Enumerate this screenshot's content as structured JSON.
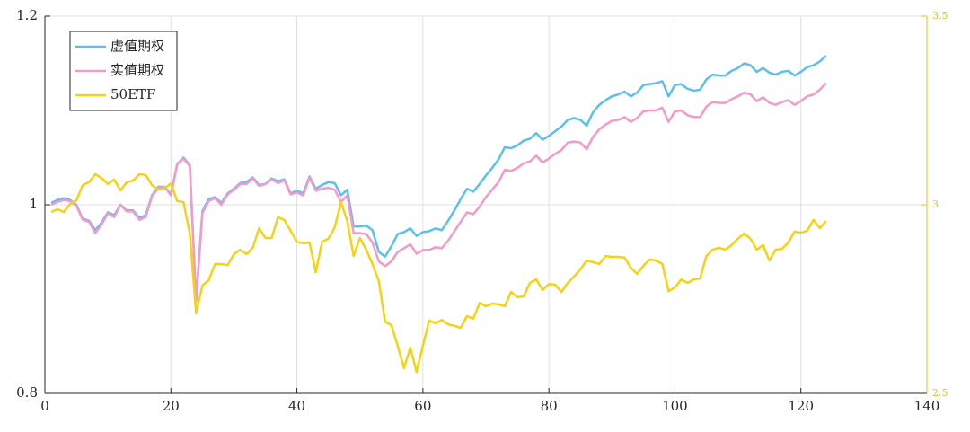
{
  "chart_data": {
    "type": "line",
    "x": [
      1,
      2,
      3,
      4,
      5,
      6,
      7,
      8,
      9,
      10,
      11,
      12,
      13,
      14,
      15,
      16,
      17,
      18,
      19,
      20,
      21,
      22,
      23,
      24,
      25,
      26,
      27,
      28,
      29,
      30,
      31,
      32,
      33,
      34,
      35,
      36,
      37,
      38,
      39,
      40,
      41,
      42,
      43,
      44,
      45,
      46,
      47,
      48,
      49,
      50,
      51,
      52,
      53,
      54,
      55,
      56,
      57,
      58,
      59,
      60,
      61,
      62,
      63,
      64,
      65,
      66,
      67,
      68,
      69,
      70,
      71,
      72,
      73,
      74,
      75,
      76,
      77,
      78,
      79,
      80,
      81,
      82,
      83,
      84,
      85,
      86,
      87,
      88,
      89,
      90,
      91,
      92,
      93,
      94,
      95,
      96,
      97,
      98,
      99,
      100,
      101,
      102,
      103,
      104,
      105,
      106,
      107,
      108,
      109,
      110,
      111,
      112,
      113,
      114,
      115,
      116,
      117,
      118,
      119,
      120,
      121,
      122,
      123,
      124
    ],
    "series": [
      {
        "name": "虚值期权",
        "color": "#5bc0eb",
        "values": [
          1.002,
          1.005,
          1.007,
          1.005,
          1.0,
          0.985,
          0.983,
          0.973,
          0.981,
          0.992,
          0.989,
          1.0,
          0.994,
          0.994,
          0.986,
          0.989,
          1.01,
          1.019,
          1.019,
          1.011,
          1.043,
          1.05,
          1.042,
          0.898,
          0.993,
          1.006,
          1.008,
          1.002,
          1.012,
          1.017,
          1.023,
          1.024,
          1.029,
          1.021,
          1.022,
          1.028,
          1.025,
          1.027,
          1.012,
          1.015,
          1.012,
          1.03,
          1.017,
          1.021,
          1.024,
          1.023,
          1.01,
          1.016,
          0.977,
          0.977,
          0.978,
          0.973,
          0.95,
          0.945,
          0.956,
          0.969,
          0.971,
          0.975,
          0.967,
          0.971,
          0.972,
          0.975,
          0.973,
          0.983,
          0.994,
          1.006,
          1.017,
          1.014,
          1.022,
          1.031,
          1.039,
          1.048,
          1.061,
          1.06,
          1.063,
          1.068,
          1.07,
          1.076,
          1.069,
          1.073,
          1.078,
          1.083,
          1.09,
          1.092,
          1.09,
          1.084,
          1.098,
          1.106,
          1.111,
          1.115,
          1.117,
          1.12,
          1.115,
          1.119,
          1.127,
          1.128,
          1.129,
          1.131,
          1.115,
          1.127,
          1.128,
          1.123,
          1.121,
          1.122,
          1.133,
          1.138,
          1.137,
          1.137,
          1.142,
          1.145,
          1.15,
          1.148,
          1.141,
          1.145,
          1.14,
          1.138,
          1.141,
          1.142,
          1.137,
          1.141,
          1.146,
          1.148,
          1.152,
          1.158
        ]
      },
      {
        "name": "实值期权",
        "color": "#f49ac9",
        "values": [
          1.0,
          1.003,
          1.005,
          1.004,
          0.999,
          0.984,
          0.982,
          0.97,
          0.979,
          0.991,
          0.987,
          1.0,
          0.993,
          0.993,
          0.984,
          0.987,
          1.009,
          1.018,
          1.019,
          1.01,
          1.043,
          1.049,
          1.041,
          0.897,
          0.991,
          1.004,
          1.007,
          1.0,
          1.011,
          1.016,
          1.022,
          1.022,
          1.028,
          1.02,
          1.022,
          1.027,
          1.023,
          1.026,
          1.011,
          1.013,
          1.01,
          1.029,
          1.015,
          1.017,
          1.018,
          1.016,
          1.003,
          1.01,
          0.97,
          0.97,
          0.969,
          0.96,
          0.94,
          0.935,
          0.94,
          0.95,
          0.954,
          0.958,
          0.948,
          0.952,
          0.952,
          0.955,
          0.954,
          0.962,
          0.972,
          0.982,
          0.992,
          0.99,
          0.998,
          1.008,
          1.016,
          1.024,
          1.037,
          1.036,
          1.039,
          1.044,
          1.046,
          1.052,
          1.045,
          1.049,
          1.054,
          1.058,
          1.066,
          1.067,
          1.066,
          1.059,
          1.072,
          1.08,
          1.085,
          1.089,
          1.09,
          1.093,
          1.088,
          1.092,
          1.099,
          1.1,
          1.1,
          1.103,
          1.088,
          1.099,
          1.1,
          1.095,
          1.093,
          1.093,
          1.104,
          1.109,
          1.108,
          1.108,
          1.112,
          1.115,
          1.119,
          1.117,
          1.11,
          1.114,
          1.108,
          1.106,
          1.109,
          1.111,
          1.106,
          1.11,
          1.115,
          1.117,
          1.122,
          1.129
        ]
      },
      {
        "name": "50ETF",
        "color": "#f5d312",
        "axis": "y2",
        "values": [
          2.981,
          2.988,
          2.981,
          3.002,
          3.012,
          3.052,
          3.06,
          3.081,
          3.071,
          3.055,
          3.067,
          3.038,
          3.06,
          3.064,
          3.081,
          3.079,
          3.052,
          3.04,
          3.043,
          3.057,
          3.01,
          3.007,
          2.924,
          2.712,
          2.786,
          2.8,
          2.843,
          2.843,
          2.84,
          2.869,
          2.881,
          2.869,
          2.886,
          2.938,
          2.912,
          2.912,
          2.967,
          2.96,
          2.931,
          2.902,
          2.898,
          2.9,
          2.821,
          2.902,
          2.91,
          2.94,
          3.007,
          2.957,
          2.864,
          2.912,
          2.881,
          2.843,
          2.798,
          2.69,
          2.681,
          2.626,
          2.567,
          2.621,
          2.557,
          2.626,
          2.693,
          2.686,
          2.695,
          2.683,
          2.679,
          2.674,
          2.705,
          2.698,
          2.74,
          2.731,
          2.738,
          2.736,
          2.731,
          2.769,
          2.755,
          2.757,
          2.793,
          2.802,
          2.774,
          2.79,
          2.788,
          2.769,
          2.793,
          2.81,
          2.829,
          2.852,
          2.848,
          2.843,
          2.864,
          2.862,
          2.862,
          2.86,
          2.833,
          2.817,
          2.838,
          2.855,
          2.852,
          2.843,
          2.771,
          2.781,
          2.802,
          2.793,
          2.802,
          2.805,
          2.864,
          2.881,
          2.886,
          2.881,
          2.893,
          2.91,
          2.924,
          2.91,
          2.881,
          2.893,
          2.852,
          2.881,
          2.883,
          2.9,
          2.929,
          2.926,
          2.931,
          2.96,
          2.938,
          2.957
        ]
      }
    ],
    "xlim": [
      0,
      140
    ],
    "xticks": [
      0,
      20,
      40,
      60,
      80,
      100,
      120,
      140
    ],
    "ylim": [
      0.8,
      1.2
    ],
    "yticks": [
      0.8,
      1,
      1.2
    ],
    "y2lim": [
      2.5,
      3.5
    ],
    "y2ticks": [
      2.5,
      3,
      3.5
    ],
    "y2_color": "#e8c200",
    "grid": true,
    "legend": "upper-left"
  }
}
